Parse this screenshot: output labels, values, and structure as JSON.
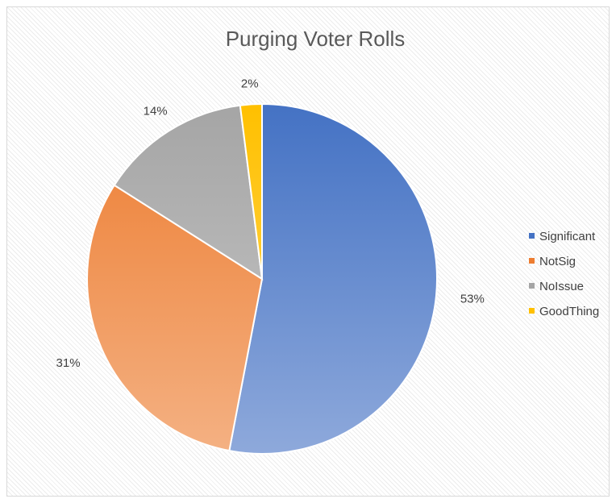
{
  "chart_data": {
    "type": "pie",
    "title": "Purging Voter Rolls",
    "categories": [
      "Significant",
      "NotSig",
      "NoIssue",
      "GoodThing"
    ],
    "values": [
      53,
      31,
      14,
      2
    ],
    "labels": [
      "53%",
      "31%",
      "14%",
      "2%"
    ],
    "colors": [
      "#4472C4",
      "#ED7D31",
      "#A5A5A5",
      "#FFC000"
    ],
    "colors_light": [
      "#8EA9DB",
      "#F4B183",
      "#C9C9C9",
      "#FFD966"
    ],
    "legend_position": "right",
    "start_angle": "12 o'clock, clockwise"
  }
}
